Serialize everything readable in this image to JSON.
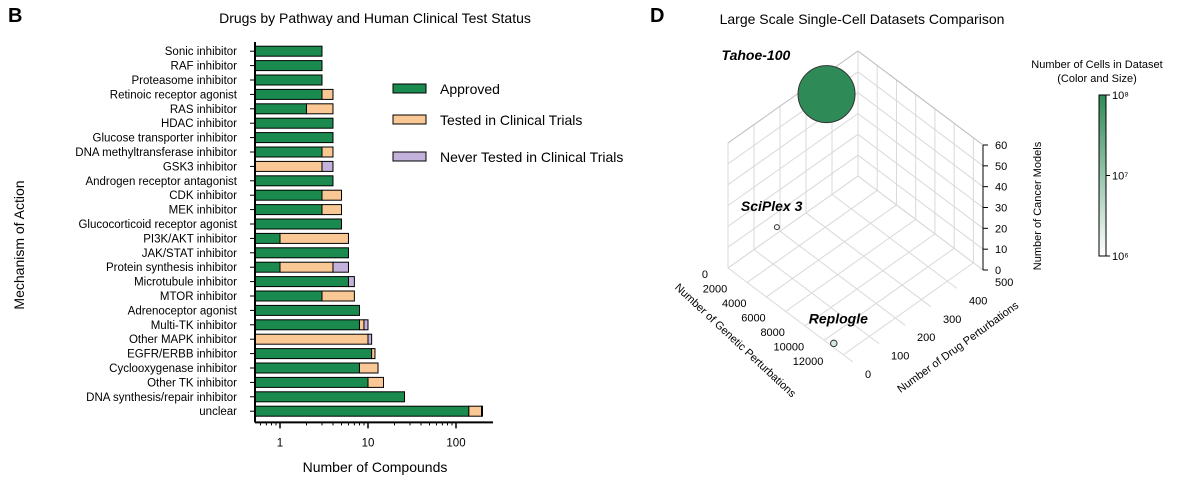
{
  "panels": {
    "b_letter": "B",
    "d_letter": "D"
  },
  "colors": {
    "approved": "#1a8a4f",
    "clinical": "#f9c894",
    "never": "#c3b3dc",
    "bubble": "#2e8b57",
    "grid": "#d9d9d9"
  },
  "chart_data": [
    {
      "type": "bar",
      "orientation": "horizontal",
      "stacked": true,
      "x_scale": "log",
      "title": "Drugs by Pathway and Human Clinical Test Status",
      "xlabel": "Number of Compounds",
      "ylabel": "Mechanism of Action",
      "xlim": [
        0.3,
        250
      ],
      "xticks": [
        "1",
        "10",
        "100"
      ],
      "legend_position": "right",
      "categories": [
        "Sonic inhibitor",
        "RAF inhibitor",
        "Proteasome inhibitor",
        "Retinoic receptor agonist",
        "RAS inhibitor",
        "HDAC inhibitor",
        "Glucose transporter inhibitor",
        "DNA methyltransferase inhibitor",
        "GSK3 inhibitor",
        "Androgen receptor antagonist",
        "CDK inhibitor",
        "MEK inhibitor",
        "Glucocorticoid receptor agonist",
        "PI3K/AKT inhibitor",
        "JAK/STAT inhibitor",
        "Protein synthesis inhibitor",
        "Microtubule inhibitor",
        "MTOR inhibitor",
        "Adrenoceptor agonist",
        "Multi-TK inhibitor",
        "Other MAPK inhibitor",
        "EGFR/ERBB inhibitor",
        "Cyclooxygenase inhibitor",
        "Other TK inhibitor",
        "DNA synthesis/repair inhibitor",
        "unclear"
      ],
      "series": [
        {
          "name": "Approved",
          "values": [
            3,
            3,
            3,
            3,
            2,
            4,
            4,
            3,
            0,
            4,
            3,
            3,
            5,
            1,
            6,
            1,
            6,
            3,
            8,
            8,
            0,
            11,
            8,
            10,
            26,
            140
          ]
        },
        {
          "name": "Tested in Clinical Trials",
          "values": [
            0,
            0,
            0,
            1,
            2,
            0,
            0,
            1,
            3,
            0,
            2,
            2,
            0,
            5,
            0,
            3,
            0,
            4,
            0,
            1,
            10,
            1,
            5,
            5,
            0,
            55
          ]
        },
        {
          "name": "Never Tested in Clinical Trials",
          "values": [
            0,
            0,
            0,
            0,
            0,
            0,
            0,
            0,
            1,
            0,
            0,
            0,
            0,
            0,
            0,
            2,
            1,
            0,
            0,
            1,
            1,
            0,
            0,
            0,
            0,
            5
          ]
        }
      ]
    },
    {
      "type": "scatter3d",
      "title": "Large Scale Single-Cell Datasets Comparison",
      "xlabel": "Number of Genetic Perturbations",
      "ylabel": "Number of Drug Perturbations",
      "zlabel": "Number of Cancer Models",
      "xticks": [
        "0",
        "2000",
        "4000",
        "6000",
        "8000",
        "10000",
        "12000"
      ],
      "yticks": [
        "0",
        "100",
        "200",
        "300",
        "400",
        "500"
      ],
      "zticks": [
        "0",
        "10",
        "20",
        "30",
        "40",
        "50",
        "60"
      ],
      "xlim": [
        0,
        13000
      ],
      "ylim": [
        0,
        500
      ],
      "zlim": [
        0,
        60
      ],
      "points": [
        {
          "name": "Tahoe-100",
          "genetic": 0,
          "drug": 379,
          "cancer_models": 50,
          "cells": 100000000
        },
        {
          "name": "SciPlex 3",
          "genetic": 0,
          "drug": 188,
          "cancer_models": 3,
          "cells": 650000
        },
        {
          "name": "Replogle",
          "genetic": 11000,
          "drug": 0,
          "cancer_models": 2,
          "cells": 2500000
        }
      ],
      "colorbar": {
        "title_line1": "Number of Cells in Dataset",
        "title_line2": "(Color and Size)",
        "ticks": [
          "10⁶",
          "10⁷",
          "10⁸"
        ],
        "scale": "log",
        "range": [
          1000000,
          100000000
        ]
      }
    }
  ]
}
